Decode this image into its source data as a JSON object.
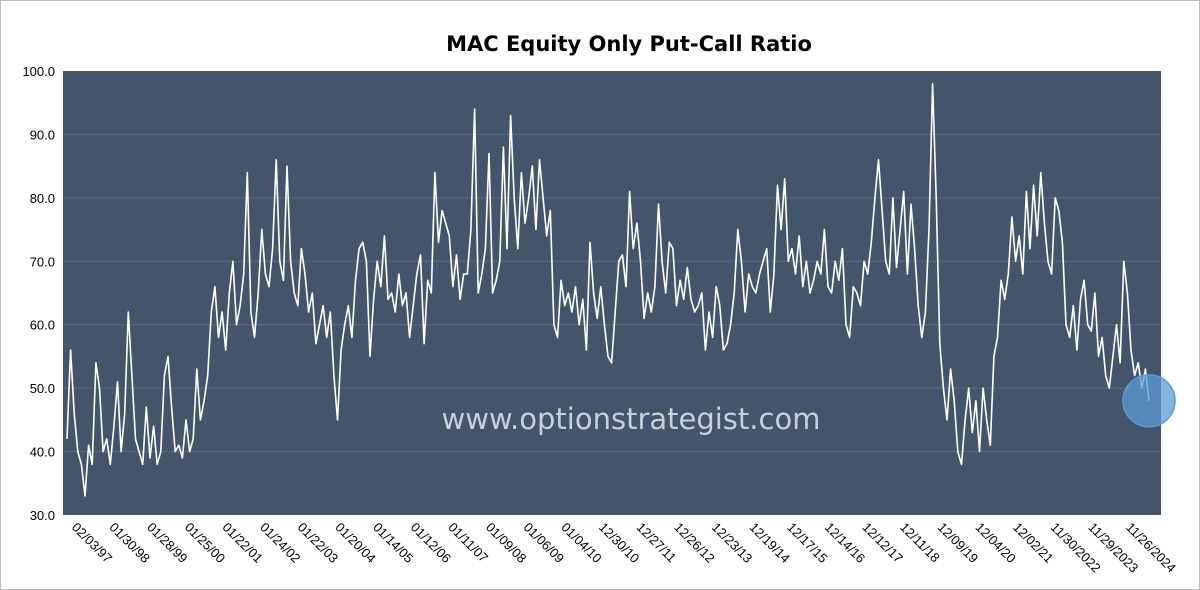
{
  "chart_data": {
    "type": "line",
    "title": "MAC Equity Only Put-Call Ratio",
    "watermark": "www.optionstrategist.com",
    "xlabel": "",
    "ylabel": "",
    "ylim": [
      30,
      100
    ],
    "yticks": [
      "30.0",
      "40.0",
      "50.0",
      "60.0",
      "70.0",
      "80.0",
      "90.0",
      "100.0"
    ],
    "grid": true,
    "plot_background": "#44546a",
    "line_color": "#ffffff",
    "highlight_color": "#5b9bd5",
    "x_tick_labels": [
      "02/03/97",
      "01/30/98",
      "01/28/99",
      "01/25/00",
      "01/22/01",
      "01/24/02",
      "01/22/03",
      "01/20/04",
      "01/14/05",
      "01/12/06",
      "01/11/07",
      "01/09/08",
      "01/06/09",
      "01/04/10",
      "12/30/10",
      "12/27/11",
      "12/26/12",
      "12/23/13",
      "12/19/14",
      "12/17/15",
      "12/14/16",
      "12/12/17",
      "12/11/18",
      "12/09/19",
      "12/04/20",
      "12/02/21",
      "11/30/2022",
      "11/29/2023",
      "11/26/2024"
    ],
    "series": [
      {
        "name": "MAC Equity Only Put-Call Ratio",
        "x_start": 1997.08,
        "x_end": 2025.2,
        "values": [
          42,
          56,
          46,
          40,
          38,
          33,
          41,
          38,
          54,
          50,
          40,
          42,
          38,
          44,
          51,
          40,
          46,
          62,
          52,
          42,
          40,
          38,
          47,
          39,
          44,
          38,
          40,
          52,
          55,
          47,
          40,
          41,
          39,
          45,
          40,
          42,
          53,
          45,
          48,
          52,
          62,
          66,
          58,
          62,
          56,
          65,
          70,
          60,
          63,
          68,
          84,
          62,
          58,
          65,
          75,
          68,
          66,
          72,
          86,
          70,
          67,
          85,
          70,
          65,
          63,
          72,
          68,
          62,
          65,
          57,
          60,
          63,
          58,
          62,
          52,
          45,
          56,
          60,
          63,
          58,
          67,
          72,
          73,
          70,
          55,
          64,
          70,
          66,
          74,
          64,
          65,
          62,
          68,
          63,
          65,
          58,
          63,
          68,
          71,
          57,
          67,
          65,
          84,
          73,
          78,
          76,
          74,
          66,
          71,
          64,
          68,
          68,
          75,
          94,
          65,
          68,
          72,
          87,
          65,
          67,
          70,
          88,
          72,
          93,
          80,
          72,
          84,
          76,
          80,
          85,
          75,
          86,
          80,
          74,
          78,
          60,
          58,
          67,
          63,
          65,
          62,
          66,
          60,
          64,
          56,
          73,
          65,
          61,
          66,
          60,
          55,
          54,
          62,
          70,
          71,
          66,
          81,
          72,
          76,
          70,
          61,
          65,
          62,
          66,
          79,
          70,
          65,
          73,
          72,
          63,
          67,
          64,
          69,
          64,
          62,
          63,
          65,
          56,
          62,
          58,
          66,
          63,
          56,
          57,
          60,
          65,
          75,
          70,
          62,
          68,
          66,
          65,
          68,
          70,
          72,
          62,
          68,
          82,
          75,
          83,
          70,
          72,
          68,
          74,
          66,
          70,
          65,
          67,
          70,
          68,
          75,
          66,
          65,
          70,
          67,
          72,
          60,
          58,
          66,
          65,
          63,
          70,
          68,
          73,
          80,
          86,
          78,
          70,
          68,
          80,
          69,
          75,
          81,
          68,
          79,
          72,
          63,
          58,
          62,
          75,
          98,
          80,
          57,
          50,
          45,
          53,
          48,
          40,
          38,
          45,
          50,
          43,
          48,
          40,
          50,
          45,
          41,
          55,
          58,
          67,
          64,
          68,
          77,
          70,
          74,
          68,
          81,
          72,
          82,
          74,
          84,
          76,
          70,
          68,
          80,
          78,
          73,
          60,
          58,
          63,
          56,
          64,
          67,
          60,
          59,
          65,
          55,
          58,
          52,
          50,
          55,
          60,
          54,
          70,
          65,
          56,
          52,
          54,
          50,
          53,
          48
        ]
      }
    ],
    "highlight_annotation": "circle at latest value"
  }
}
